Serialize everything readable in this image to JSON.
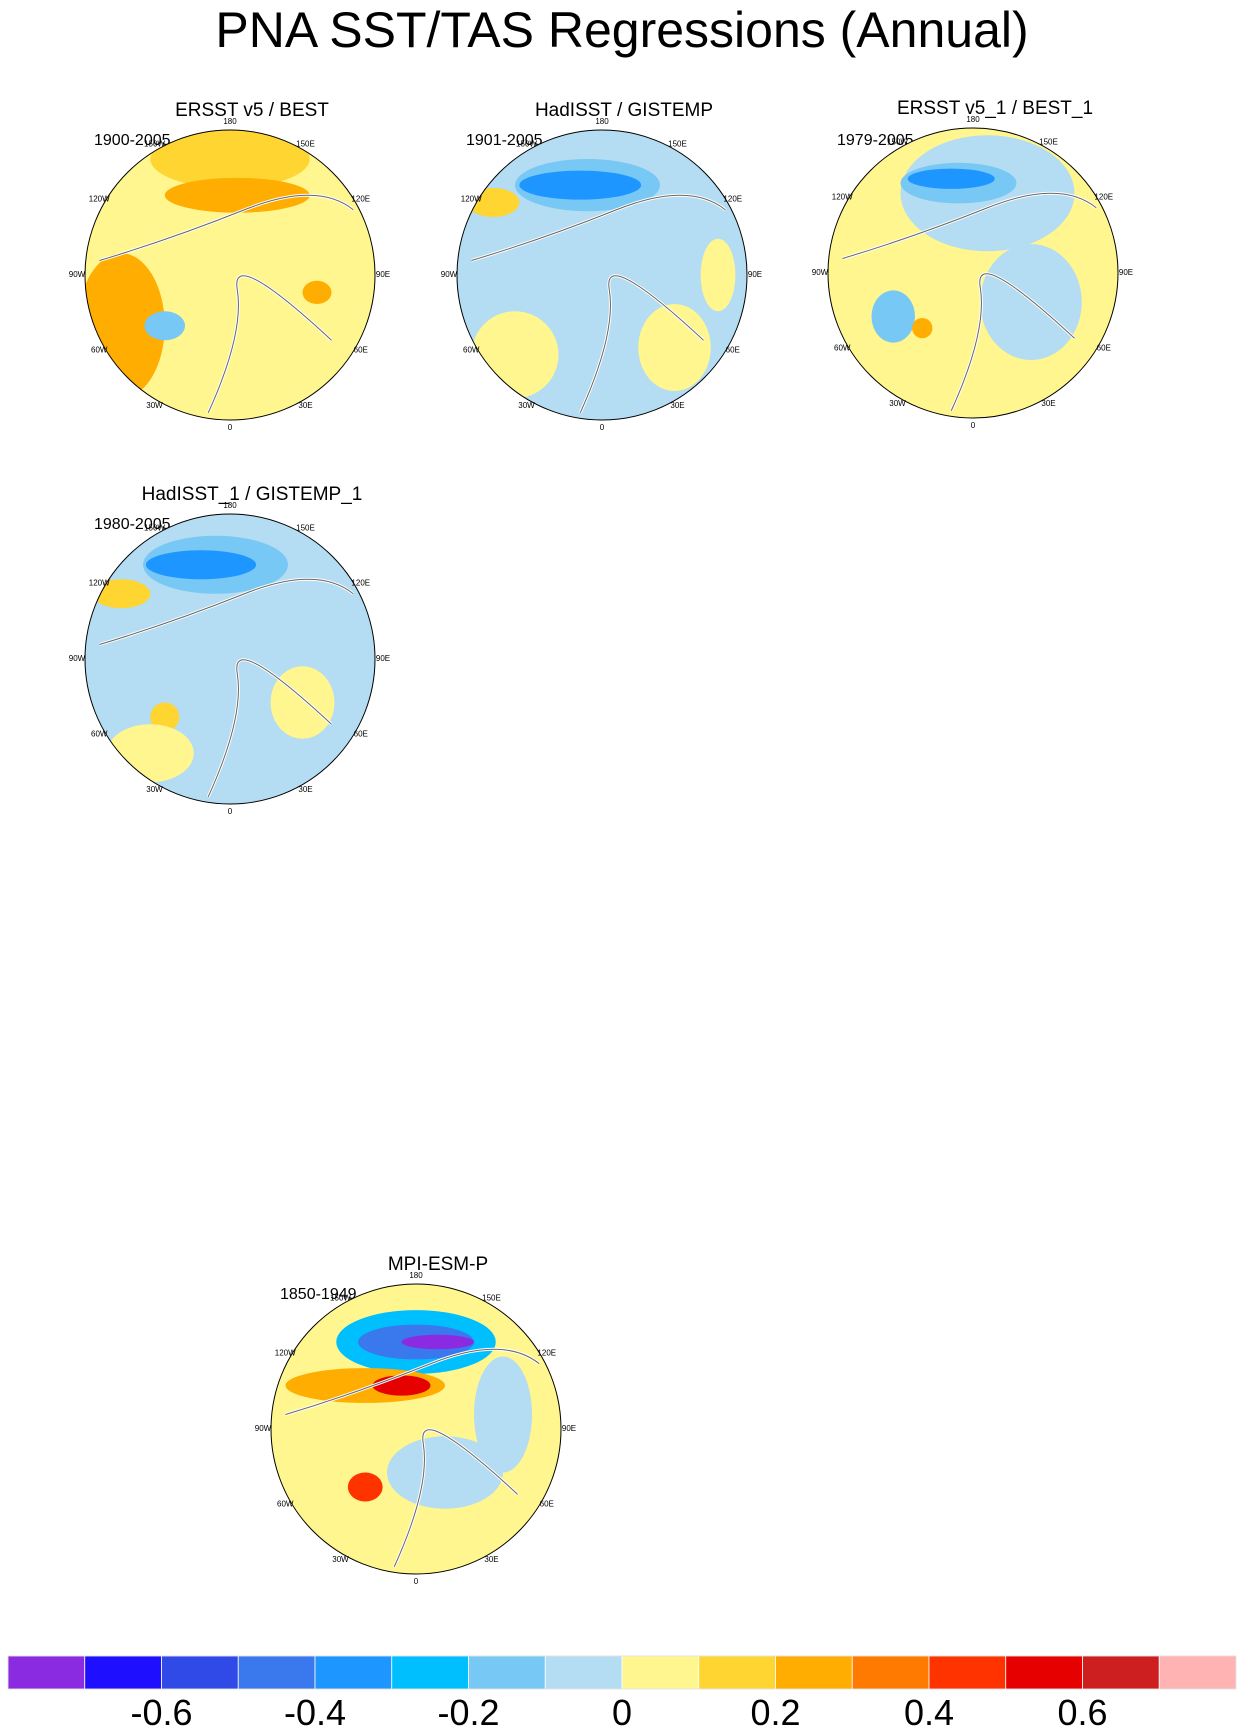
{
  "title": "PNA SST/TAS Regressions (Annual)",
  "longitude_labels": [
    "180",
    "150E",
    "120E",
    "90E",
    "60E",
    "30E",
    "0",
    "30W",
    "60W",
    "90W",
    "120W",
    "150W"
  ],
  "panels": [
    {
      "name": "ERSST v5 / BEST",
      "period": "1900-2005"
    },
    {
      "name": "HadISST / GISTEMP",
      "period": "1901-2005"
    },
    {
      "name": "ERSST v5_1 / BEST_1",
      "period": "1979-2005"
    },
    {
      "name": "HadISST_1 / GISTEMP_1",
      "period": "1980-2005"
    },
    {
      "name": "MPI-ESM-P",
      "period": "1850-1949"
    }
  ],
  "colorbar": {
    "colors": [
      "#8a2be2",
      "#1e0fff",
      "#2f4ae6",
      "#3a78ee",
      "#1e96ff",
      "#00bfff",
      "#78c8f5",
      "#b4dcf2",
      "#fff68f",
      "#ffd531",
      "#ffad00",
      "#ff7a00",
      "#ff3300",
      "#e60000",
      "#cd1f1f",
      "#ffb3b3"
    ],
    "tick_values": [
      -0.6,
      -0.4,
      -0.2,
      0,
      0.2,
      0.4,
      0.6
    ],
    "tick_labels": [
      "-0.6",
      "-0.4",
      "-0.2",
      "0",
      "0.2",
      "0.4",
      "0.6"
    ]
  }
}
